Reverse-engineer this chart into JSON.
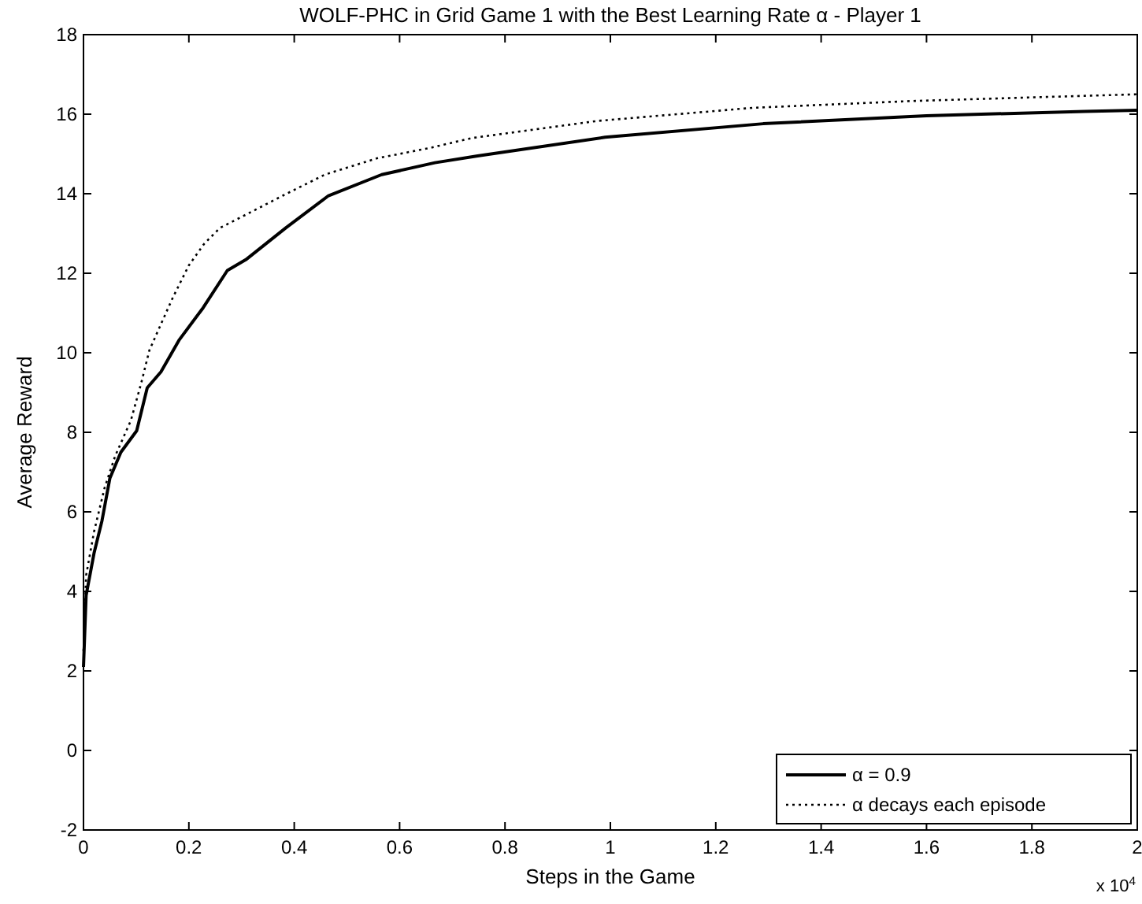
{
  "chart_data": {
    "type": "line",
    "title": "WOLF-PHC in Grid Game 1 with the Best Learning Rate α - Player 1",
    "xlabel": "Steps in the Game",
    "ylabel": "Average Reward",
    "annotations": [
      "x 10$^{4}$"
    ],
    "xlim": [
      0,
      2
    ],
    "xticks": [
      0,
      0.2,
      0.4,
      0.6,
      0.8,
      1,
      1.2,
      1.4,
      1.6,
      1.8,
      2
    ],
    "ylim": [
      -2,
      18
    ],
    "yticks": [
      -2,
      0,
      2,
      4,
      6,
      8,
      10,
      12,
      14,
      16,
      18
    ],
    "grid": false,
    "legend": "bottom right",
    "series": [
      {
        "name": "α = 0.9",
        "color": "#000000",
        "line_style": "solid",
        "x": [
          0,
          0.005,
          0.02,
          0.035,
          0.05,
          0.071,
          0.101,
          0.121,
          0.147,
          0.182,
          0.227,
          0.273,
          0.308,
          0.384,
          0.465,
          0.566,
          0.667,
          0.748,
          0.99,
          1.29,
          1.6,
          1.9,
          2
        ],
        "values": [
          2.1,
          3.9,
          4.96,
          5.77,
          6.84,
          7.5,
          8.04,
          9.12,
          9.52,
          10.33,
          11.13,
          12.07,
          12.34,
          13.14,
          13.95,
          14.48,
          14.78,
          14.95,
          15.42,
          15.76,
          15.96,
          16.07,
          16.1
        ]
      },
      {
        "name": "α decays each episode",
        "color": "#000000",
        "line_style": "dotted",
        "x": [
          0,
          0.005,
          0.02,
          0.04,
          0.06,
          0.09,
          0.11,
          0.125,
          0.145,
          0.17,
          0.2,
          0.229,
          0.259,
          0.299,
          0.378,
          0.458,
          0.557,
          0.657,
          0.737,
          0.975,
          1.27,
          1.57,
          1.87,
          2
        ],
        "values": [
          2.5,
          4.4,
          5.5,
          6.6,
          7.4,
          8.3,
          9.26,
          10.06,
          10.66,
          11.4,
          12.2,
          12.74,
          13.14,
          13.41,
          13.95,
          14.48,
          14.89,
          15.15,
          15.4,
          15.83,
          16.16,
          16.33,
          16.45,
          16.5
        ]
      }
    ]
  }
}
